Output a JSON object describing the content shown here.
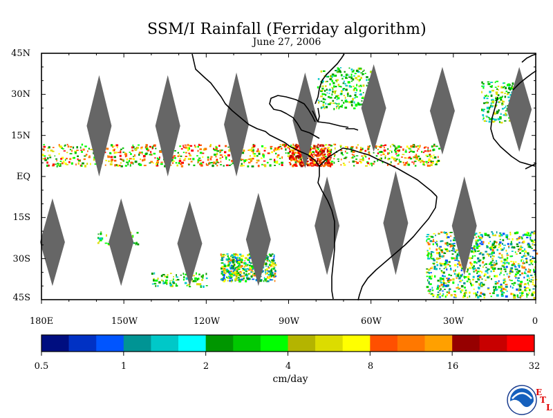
{
  "title": "SSM/I Rainfall (Ferriday algorithm)",
  "subtitle": "June 27, 2006",
  "map": {
    "lon_range": [
      -180,
      0
    ],
    "lat_range": [
      -45,
      45
    ],
    "lat_labels": [
      "45N",
      "30N",
      "15N",
      "EQ",
      "15S",
      "30S",
      "45S"
    ],
    "lon_labels": [
      "180E",
      "150W",
      "120W",
      "90W",
      "60W",
      "30W",
      "0"
    ],
    "swath_gaps": [
      {
        "lon": -159,
        "lat_min": 0,
        "lat_max": 37
      },
      {
        "lon": -134,
        "lat_min": 0,
        "lat_max": 37
      },
      {
        "lon": -109,
        "lat_min": 0,
        "lat_max": 38
      },
      {
        "lon": -84,
        "lat_min": 3,
        "lat_max": 38
      },
      {
        "lon": -59,
        "lat_min": 9,
        "lat_max": 41
      },
      {
        "lon": -34,
        "lat_min": 8,
        "lat_max": 40
      },
      {
        "lon": -6,
        "lat_min": 9,
        "lat_max": 40
      },
      {
        "lon": -176,
        "lat_min": -40,
        "lat_max": -8
      },
      {
        "lon": -151,
        "lat_min": -40,
        "lat_max": -8
      },
      {
        "lon": -126,
        "lat_min": -40,
        "lat_max": -9
      },
      {
        "lon": -101,
        "lat_min": -40,
        "lat_max": -6
      },
      {
        "lon": -76,
        "lat_min": -36,
        "lat_max": 0
      },
      {
        "lon": -51,
        "lat_min": -36,
        "lat_max": 2
      },
      {
        "lon": -26,
        "lat_min": -36,
        "lat_max": 0
      }
    ],
    "rain_regions": [
      {
        "lon1": -180,
        "lon2": -35,
        "lat1": 4,
        "lat2": 12,
        "kind": "itcz"
      },
      {
        "lon1": -90,
        "lon2": -75,
        "lat1": 4,
        "lat2": 12,
        "kind": "heavy"
      },
      {
        "lon1": -115,
        "lon2": -95,
        "lat1": -38,
        "lat2": -28,
        "kind": "storm"
      },
      {
        "lon1": -40,
        "lon2": 0,
        "lat1": -44,
        "lat2": -20,
        "kind": "storm"
      },
      {
        "lon1": -160,
        "lon2": -145,
        "lat1": -25,
        "lat2": -20,
        "kind": "light"
      },
      {
        "lon1": -140,
        "lon2": -120,
        "lat1": -40,
        "lat2": -35,
        "kind": "light"
      },
      {
        "lon1": -80,
        "lon2": -60,
        "lat1": 25,
        "lat2": 40,
        "kind": "light"
      },
      {
        "lon1": -20,
        "lon2": -5,
        "lat1": 20,
        "lat2": 35,
        "kind": "light"
      }
    ],
    "colors": {
      "swath_gap": "#666666",
      "coast": "#000000"
    }
  },
  "colorbar": {
    "colors": [
      "#000e80",
      "#0031c4",
      "#0055ff",
      "#009494",
      "#00c8c8",
      "#00ffff",
      "#009600",
      "#00c800",
      "#00ff00",
      "#b4b400",
      "#dcdc00",
      "#ffff00",
      "#ff5000",
      "#ff7800",
      "#ffa000",
      "#960000",
      "#c80000",
      "#ff0000"
    ],
    "tick_labels": [
      "0.5",
      "1",
      "2",
      "4",
      "8",
      "16",
      "32"
    ],
    "tick_values": [
      0.5,
      1,
      2,
      4,
      8,
      16,
      32
    ],
    "units": "cm/day"
  },
  "logo": {
    "text": "NOAA",
    "etl": [
      "E",
      "T",
      "L"
    ]
  }
}
